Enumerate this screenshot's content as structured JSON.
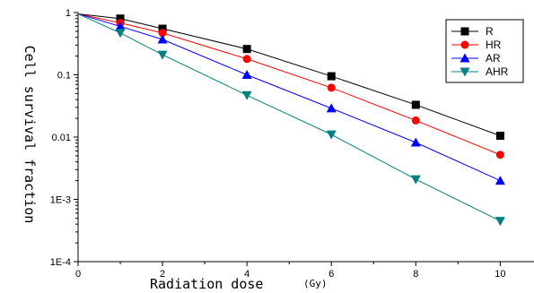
{
  "chart_data": {
    "type": "line",
    "title": "",
    "xlabel": "Radiation dose",
    "xunit": "(Gy)",
    "ylabel": "Cell survival fraction",
    "xlim": [
      0,
      10.8
    ],
    "ylim": [
      0.0001,
      1
    ],
    "yscale": "log",
    "grid": false,
    "legend": "top-right",
    "x_ticks": [
      "0",
      "2",
      "4",
      "6",
      "8",
      "10"
    ],
    "y_ticks": [
      "1E-4",
      "1E-3",
      "0.01",
      "0.1",
      "1"
    ],
    "series": [
      {
        "name": "R",
        "color": "#000000",
        "marker": "square",
        "x": [
          0,
          1,
          2,
          4,
          6,
          8,
          10
        ],
        "y": [
          0.95,
          0.8,
          0.55,
          0.26,
          0.095,
          0.033,
          0.0105
        ]
      },
      {
        "name": "HR",
        "color": "#ff0000",
        "marker": "circle",
        "x": [
          0,
          1,
          2,
          4,
          6,
          8,
          10
        ],
        "y": [
          0.95,
          0.68,
          0.47,
          0.18,
          0.062,
          0.0185,
          0.0052
        ]
      },
      {
        "name": "AR",
        "color": "#0000ff",
        "marker": "triangle-up",
        "x": [
          0,
          1,
          2,
          4,
          6,
          8,
          10
        ],
        "y": [
          0.95,
          0.6,
          0.37,
          0.1,
          0.029,
          0.0082,
          0.002
        ]
      },
      {
        "name": "AHR",
        "color": "#008080",
        "marker": "triangle-down",
        "x": [
          0,
          1,
          2,
          4,
          6,
          8,
          10
        ],
        "y": [
          0.95,
          0.47,
          0.21,
          0.047,
          0.011,
          0.0021,
          0.00045
        ]
      }
    ]
  }
}
